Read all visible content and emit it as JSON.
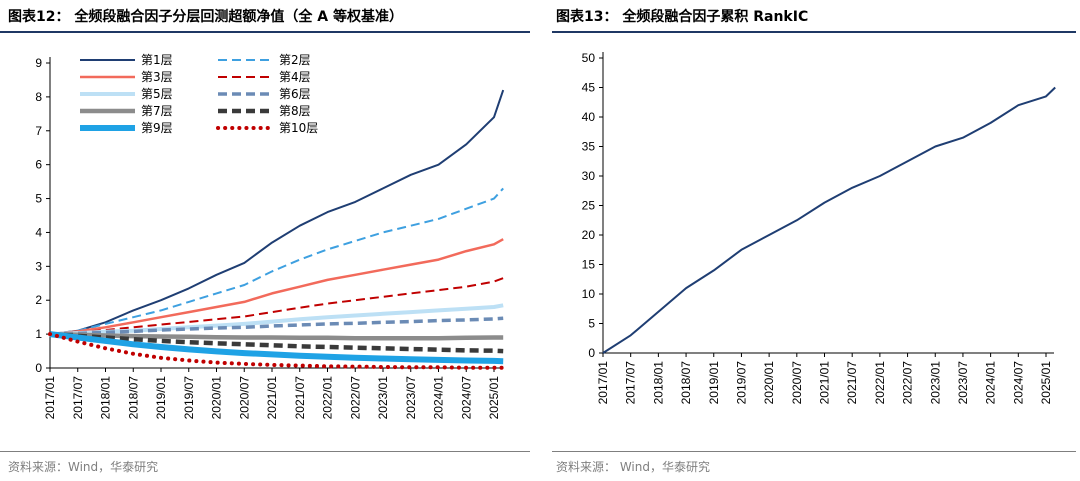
{
  "left": {
    "title": "图表12：  全频段融合因子分层回测超额净值（全 A 等权基准）",
    "source": "资料来源：Wind，华泰研究"
  },
  "right": {
    "title": "图表13：  全频段融合因子累积 RankIC",
    "source": "资料来源：  Wind，华泰研究"
  },
  "chart_data": [
    {
      "type": "line",
      "title": "全频段融合因子分层回测超额净值（全 A 等权基准）",
      "x_ticks": [
        "2017/01",
        "2017/07",
        "2018/01",
        "2018/07",
        "2019/01",
        "2019/07",
        "2020/01",
        "2020/07",
        "2021/01",
        "2021/07",
        "2022/01",
        "2022/07",
        "2023/01",
        "2023/07",
        "2024/01",
        "2024/07",
        "2025/01"
      ],
      "x": [
        "2017/01",
        "2017/07",
        "2018/01",
        "2018/07",
        "2019/01",
        "2019/07",
        "2020/01",
        "2020/07",
        "2021/01",
        "2021/07",
        "2022/01",
        "2022/07",
        "2023/01",
        "2023/07",
        "2024/01",
        "2024/07",
        "2025/01",
        "2025/03"
      ],
      "y_ticks": [
        "0",
        "1",
        "2",
        "3",
        "4",
        "5",
        "6",
        "7",
        "8",
        "9"
      ],
      "ylim": [
        0,
        9
      ],
      "legend_position": "top-left",
      "series": [
        {
          "name": "第1层",
          "color": "#1f3e73",
          "dash": "solid",
          "width": 2,
          "values": [
            1.0,
            1.1,
            1.35,
            1.7,
            2.0,
            2.35,
            2.75,
            3.1,
            3.7,
            4.2,
            4.6,
            4.9,
            5.3,
            5.7,
            6.0,
            6.6,
            7.4,
            8.2
          ]
        },
        {
          "name": "第2层",
          "color": "#3ea0e0",
          "dash": "dashed",
          "width": 2,
          "values": [
            1.0,
            1.1,
            1.3,
            1.5,
            1.7,
            1.95,
            2.2,
            2.45,
            2.85,
            3.2,
            3.5,
            3.75,
            4.0,
            4.2,
            4.4,
            4.7,
            5.0,
            5.3
          ]
        },
        {
          "name": "第3层",
          "color": "#f26a5b",
          "dash": "solid",
          "width": 2.5,
          "values": [
            1.0,
            1.08,
            1.2,
            1.35,
            1.5,
            1.65,
            1.8,
            1.95,
            2.2,
            2.4,
            2.6,
            2.75,
            2.9,
            3.05,
            3.2,
            3.45,
            3.65,
            3.8
          ]
        },
        {
          "name": "第4层",
          "color": "#c00000",
          "dash": "dashed",
          "width": 2,
          "values": [
            1.0,
            1.05,
            1.12,
            1.2,
            1.28,
            1.36,
            1.44,
            1.52,
            1.65,
            1.78,
            1.9,
            2.0,
            2.1,
            2.2,
            2.3,
            2.4,
            2.55,
            2.65
          ]
        },
        {
          "name": "第5层",
          "color": "#bde0f5",
          "dash": "solid",
          "width": 4,
          "values": [
            1.0,
            1.03,
            1.07,
            1.1,
            1.15,
            1.2,
            1.25,
            1.3,
            1.37,
            1.44,
            1.5,
            1.55,
            1.6,
            1.65,
            1.7,
            1.75,
            1.8,
            1.85
          ]
        },
        {
          "name": "第6层",
          "color": "#6b8bb5",
          "dash": "dashed",
          "width": 3.5,
          "values": [
            1.0,
            1.02,
            1.05,
            1.08,
            1.12,
            1.15,
            1.18,
            1.2,
            1.24,
            1.27,
            1.3,
            1.32,
            1.35,
            1.37,
            1.4,
            1.42,
            1.45,
            1.47
          ]
        },
        {
          "name": "第7层",
          "color": "#8c8c8c",
          "dash": "solid",
          "width": 4.5,
          "values": [
            1.0,
            0.98,
            0.96,
            0.94,
            0.93,
            0.92,
            0.91,
            0.9,
            0.9,
            0.89,
            0.89,
            0.88,
            0.88,
            0.88,
            0.88,
            0.89,
            0.9,
            0.9
          ]
        },
        {
          "name": "第8层",
          "color": "#3a3a3a",
          "dash": "dashed",
          "width": 4.5,
          "values": [
            1.0,
            0.95,
            0.9,
            0.85,
            0.8,
            0.76,
            0.73,
            0.7,
            0.67,
            0.64,
            0.62,
            0.6,
            0.58,
            0.56,
            0.54,
            0.52,
            0.51,
            0.5
          ]
        },
        {
          "name": "第9层",
          "color": "#1fa2e5",
          "dash": "solid",
          "width": 6,
          "values": [
            1.0,
            0.9,
            0.8,
            0.7,
            0.62,
            0.55,
            0.49,
            0.44,
            0.4,
            0.36,
            0.33,
            0.3,
            0.28,
            0.26,
            0.24,
            0.22,
            0.21,
            0.2
          ]
        },
        {
          "name": "第10层",
          "color": "#c00000",
          "dash": "dotted",
          "width": 4,
          "values": [
            1.0,
            0.78,
            0.58,
            0.42,
            0.3,
            0.22,
            0.16,
            0.12,
            0.09,
            0.07,
            0.05,
            0.04,
            0.03,
            0.02,
            0.02,
            0.01,
            0.01,
            0.01
          ]
        }
      ]
    },
    {
      "type": "line",
      "title": "全频段融合因子累积 RankIC",
      "x_ticks": [
        "2017/01",
        "2017/07",
        "2018/01",
        "2018/07",
        "2019/01",
        "2019/07",
        "2020/01",
        "2020/07",
        "2021/01",
        "2021/07",
        "2022/01",
        "2022/07",
        "2023/01",
        "2023/07",
        "2024/01",
        "2024/07",
        "2025/01"
      ],
      "x": [
        "2017/01",
        "2017/07",
        "2018/01",
        "2018/07",
        "2019/01",
        "2019/07",
        "2020/01",
        "2020/07",
        "2021/01",
        "2021/07",
        "2022/01",
        "2022/07",
        "2023/01",
        "2023/07",
        "2024/01",
        "2024/07",
        "2025/01",
        "2025/03"
      ],
      "y_ticks": [
        "0",
        "5",
        "10",
        "15",
        "20",
        "25",
        "30",
        "35",
        "40",
        "45",
        "50"
      ],
      "ylim": [
        0,
        50
      ],
      "series": [
        {
          "color": "#1f3e73",
          "values": [
            0,
            3,
            7,
            11,
            14,
            17.5,
            20,
            22.5,
            25.5,
            28,
            30,
            32.5,
            35,
            36.5,
            39,
            42,
            43.5,
            45
          ]
        }
      ]
    }
  ]
}
